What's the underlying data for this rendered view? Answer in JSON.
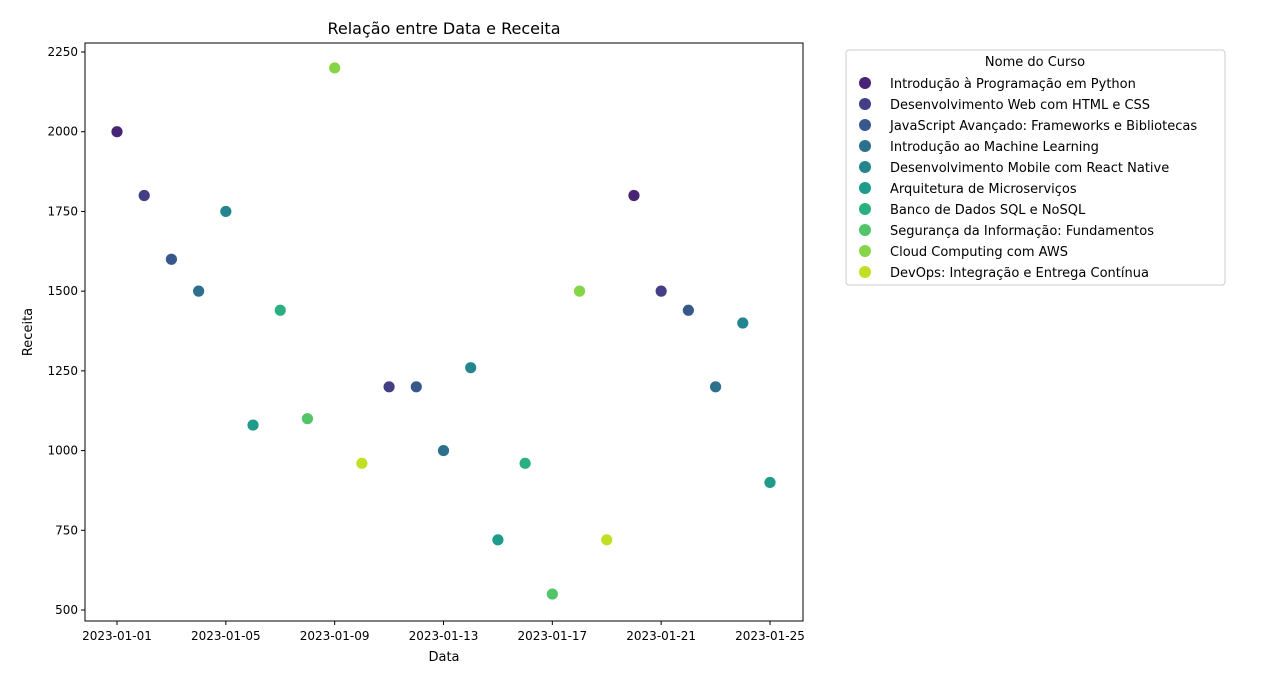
{
  "chart_data": {
    "type": "scatter",
    "title": "Relação entre Data e Receita",
    "xlabel": "Data",
    "ylabel": "Receita",
    "xlim": [
      "2023-01-01",
      "2023-01-25"
    ],
    "ylim": [
      500,
      2250
    ],
    "x_ticks": [
      "2023-01-01",
      "2023-01-05",
      "2023-01-09",
      "2023-01-13",
      "2023-01-17",
      "2023-01-21",
      "2023-01-25"
    ],
    "y_ticks": [
      500,
      750,
      1000,
      1250,
      1500,
      1750,
      2000,
      2250
    ],
    "grid": false,
    "legend": {
      "title": "Nome do Curso",
      "placement": "outside-right-top",
      "entries": [
        {
          "name": "Introdução à Programação em Python",
          "color": "#482475"
        },
        {
          "name": "Desenvolvimento Web com HTML e CSS",
          "color": "#433e85"
        },
        {
          "name": "JavaScript Avançado: Frameworks e Bibliotecas",
          "color": "#38588c"
        },
        {
          "name": "Introdução ao Machine Learning",
          "color": "#2d708e"
        },
        {
          "name": "Desenvolvimento Mobile com React Native",
          "color": "#25858e"
        },
        {
          "name": "Arquitetura de Microserviços",
          "color": "#1e9b8a"
        },
        {
          "name": "Banco de Dados SQL e NoSQL",
          "color": "#2ab07f"
        },
        {
          "name": "Segurança da Informação: Fundamentos",
          "color": "#52c569"
        },
        {
          "name": "Cloud Computing com AWS",
          "color": "#86d549"
        },
        {
          "name": "DevOps: Integração e Entrega Contínua",
          "color": "#c2df23"
        }
      ]
    },
    "points": [
      {
        "x": "2023-01-01",
        "y": 2000,
        "series": 0
      },
      {
        "x": "2023-01-02",
        "y": 1800,
        "series": 1
      },
      {
        "x": "2023-01-03",
        "y": 1600,
        "series": 2
      },
      {
        "x": "2023-01-04",
        "y": 1500,
        "series": 3
      },
      {
        "x": "2023-01-05",
        "y": 1750,
        "series": 4
      },
      {
        "x": "2023-01-06",
        "y": 1080,
        "series": 5
      },
      {
        "x": "2023-01-07",
        "y": 1440,
        "series": 6
      },
      {
        "x": "2023-01-08",
        "y": 1100,
        "series": 7
      },
      {
        "x": "2023-01-09",
        "y": 2200,
        "series": 8
      },
      {
        "x": "2023-01-10",
        "y": 960,
        "series": 9
      },
      {
        "x": "2023-01-11",
        "y": 1200,
        "series": 1
      },
      {
        "x": "2023-01-12",
        "y": 1200,
        "series": 2
      },
      {
        "x": "2023-01-13",
        "y": 1000,
        "series": 3
      },
      {
        "x": "2023-01-14",
        "y": 1260,
        "series": 4
      },
      {
        "x": "2023-01-15",
        "y": 720,
        "series": 5
      },
      {
        "x": "2023-01-16",
        "y": 960,
        "series": 6
      },
      {
        "x": "2023-01-17",
        "y": 550,
        "series": 7
      },
      {
        "x": "2023-01-18",
        "y": 1500,
        "series": 8
      },
      {
        "x": "2023-01-19",
        "y": 720,
        "series": 9
      },
      {
        "x": "2023-01-20",
        "y": 1800,
        "series": 0
      },
      {
        "x": "2023-01-21",
        "y": 1500,
        "series": 1
      },
      {
        "x": "2023-01-22",
        "y": 1440,
        "series": 2
      },
      {
        "x": "2023-01-23",
        "y": 1200,
        "series": 3
      },
      {
        "x": "2023-01-24",
        "y": 1400,
        "series": 4
      },
      {
        "x": "2023-01-25",
        "y": 900,
        "series": 5
      }
    ]
  }
}
